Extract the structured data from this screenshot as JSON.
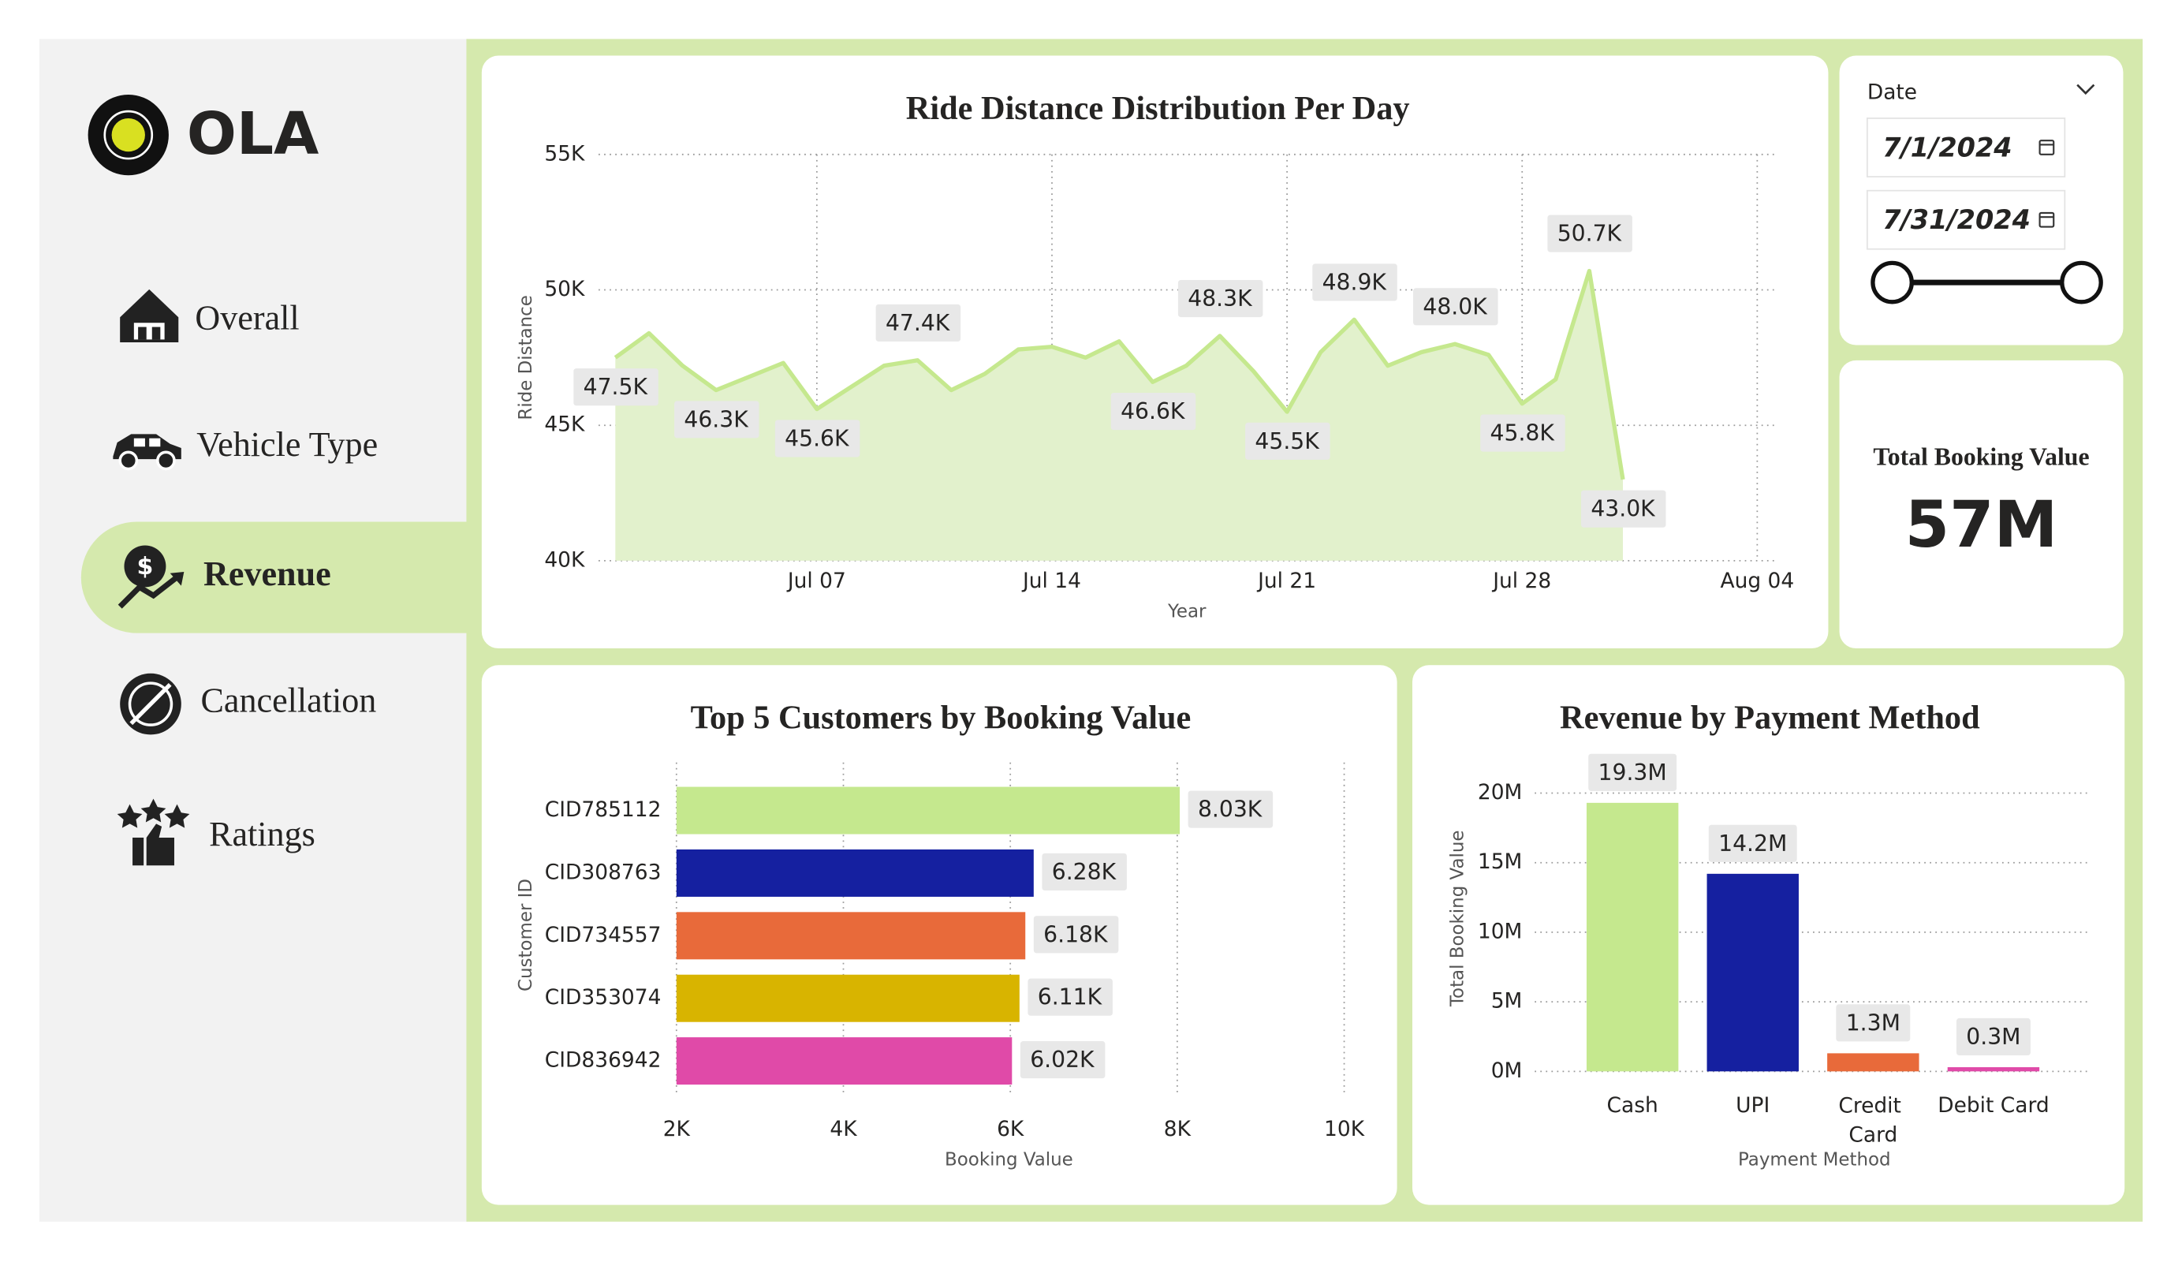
{
  "sidebar": {
    "logo": "OLA",
    "nav": [
      "Overall",
      "Vehicle Type",
      "Revenue",
      "Cancellation",
      "Ratings"
    ],
    "active": 2
  },
  "date_filter": {
    "label": "Date",
    "start": "7/1/2024",
    "end": "7/31/2024"
  },
  "kpi": {
    "title": "Total Booking Value",
    "value": "57M"
  },
  "chart_data": [
    {
      "type": "area",
      "title": "Ride Distance Distribution Per Day",
      "x_label": "Year",
      "y_label": "Ride Distance",
      "x": [
        1,
        2,
        3,
        4,
        5,
        6,
        7,
        8,
        9,
        10,
        11,
        12,
        13,
        14,
        15,
        16,
        17,
        18,
        19,
        20,
        21,
        22,
        23,
        24,
        25,
        26,
        27,
        28,
        29,
        30,
        31
      ],
      "values": [
        47500,
        48400,
        47200,
        46300,
        46800,
        47300,
        45600,
        46400,
        47200,
        47400,
        46300,
        46900,
        47800,
        47900,
        47500,
        48100,
        46600,
        47200,
        48300,
        47000,
        45500,
        47700,
        48900,
        47200,
        47700,
        48000,
        47600,
        45800,
        46700,
        50700,
        43000
      ],
      "value_labels": [
        "47.5K",
        null,
        null,
        "46.3K",
        null,
        null,
        "45.6K",
        null,
        null,
        "47.4K",
        null,
        null,
        null,
        null,
        null,
        null,
        "46.6K",
        null,
        "48.3K",
        null,
        "45.5K",
        null,
        "48.9K",
        null,
        null,
        "48.0K",
        null,
        "45.8K",
        null,
        "50.7K",
        "43.0K"
      ],
      "color": "#c5e88e",
      "fill": "#e2f1cc",
      "xlim": [
        0.5,
        35.5
      ],
      "xticks": [
        {
          "value": 7,
          "label": "Jul 07"
        },
        {
          "value": 14,
          "label": "Jul 14"
        },
        {
          "value": 21,
          "label": "Jul 21"
        },
        {
          "value": 28,
          "label": "Jul 28"
        },
        {
          "value": 35,
          "label": "Aug 04"
        }
      ],
      "ylim": [
        40000,
        55000
      ],
      "yticks": [
        {
          "value": 40000,
          "label": "40K"
        },
        {
          "value": 45000,
          "label": "45K"
        },
        {
          "value": 50000,
          "label": "50K"
        },
        {
          "value": 55000,
          "label": "55K"
        }
      ],
      "grid": true
    },
    {
      "type": "bar",
      "orientation": "horizontal",
      "title": "Top 5 Customers by Booking Value",
      "x_label": "Booking Value",
      "y_label": "Customer ID",
      "categories": [
        "CID785112",
        "CID308763",
        "CID734557",
        "CID353074",
        "CID836942"
      ],
      "values": [
        8030,
        6280,
        6180,
        6110,
        6020
      ],
      "value_labels": [
        "8.03K",
        "6.28K",
        "6.18K",
        "6.11K",
        "6.02K"
      ],
      "colors": [
        "#c5e88e",
        "#1520a0",
        "#e86a3a",
        "#d8b400",
        "#e04aa8"
      ],
      "xlim": [
        2000,
        10000
      ],
      "xticks": [
        {
          "value": 2000,
          "label": "2K"
        },
        {
          "value": 4000,
          "label": "4K"
        },
        {
          "value": 6000,
          "label": "6K"
        },
        {
          "value": 8000,
          "label": "8K"
        },
        {
          "value": 10000,
          "label": "10K"
        }
      ],
      "grid": true
    },
    {
      "type": "bar",
      "orientation": "vertical",
      "title": "Revenue by Payment Method",
      "x_label": "Payment Method",
      "y_label": "Total Booking Value",
      "categories": [
        "Cash",
        "UPI",
        "Credit Card",
        "Debit Card"
      ],
      "values": [
        19300000,
        14200000,
        1300000,
        300000
      ],
      "value_labels": [
        "19.3M",
        "14.2M",
        "1.3M",
        "0.3M"
      ],
      "colors": [
        "#c5e88e",
        "#1520a0",
        "#e86a3a",
        "#e04aa8"
      ],
      "ylim": [
        0,
        20000000
      ],
      "yticks": [
        {
          "value": 0,
          "label": "0M"
        },
        {
          "value": 5000000,
          "label": "5M"
        },
        {
          "value": 10000000,
          "label": "10M"
        },
        {
          "value": 15000000,
          "label": "15M"
        },
        {
          "value": 20000000,
          "label": "20M"
        }
      ],
      "grid": true
    }
  ]
}
